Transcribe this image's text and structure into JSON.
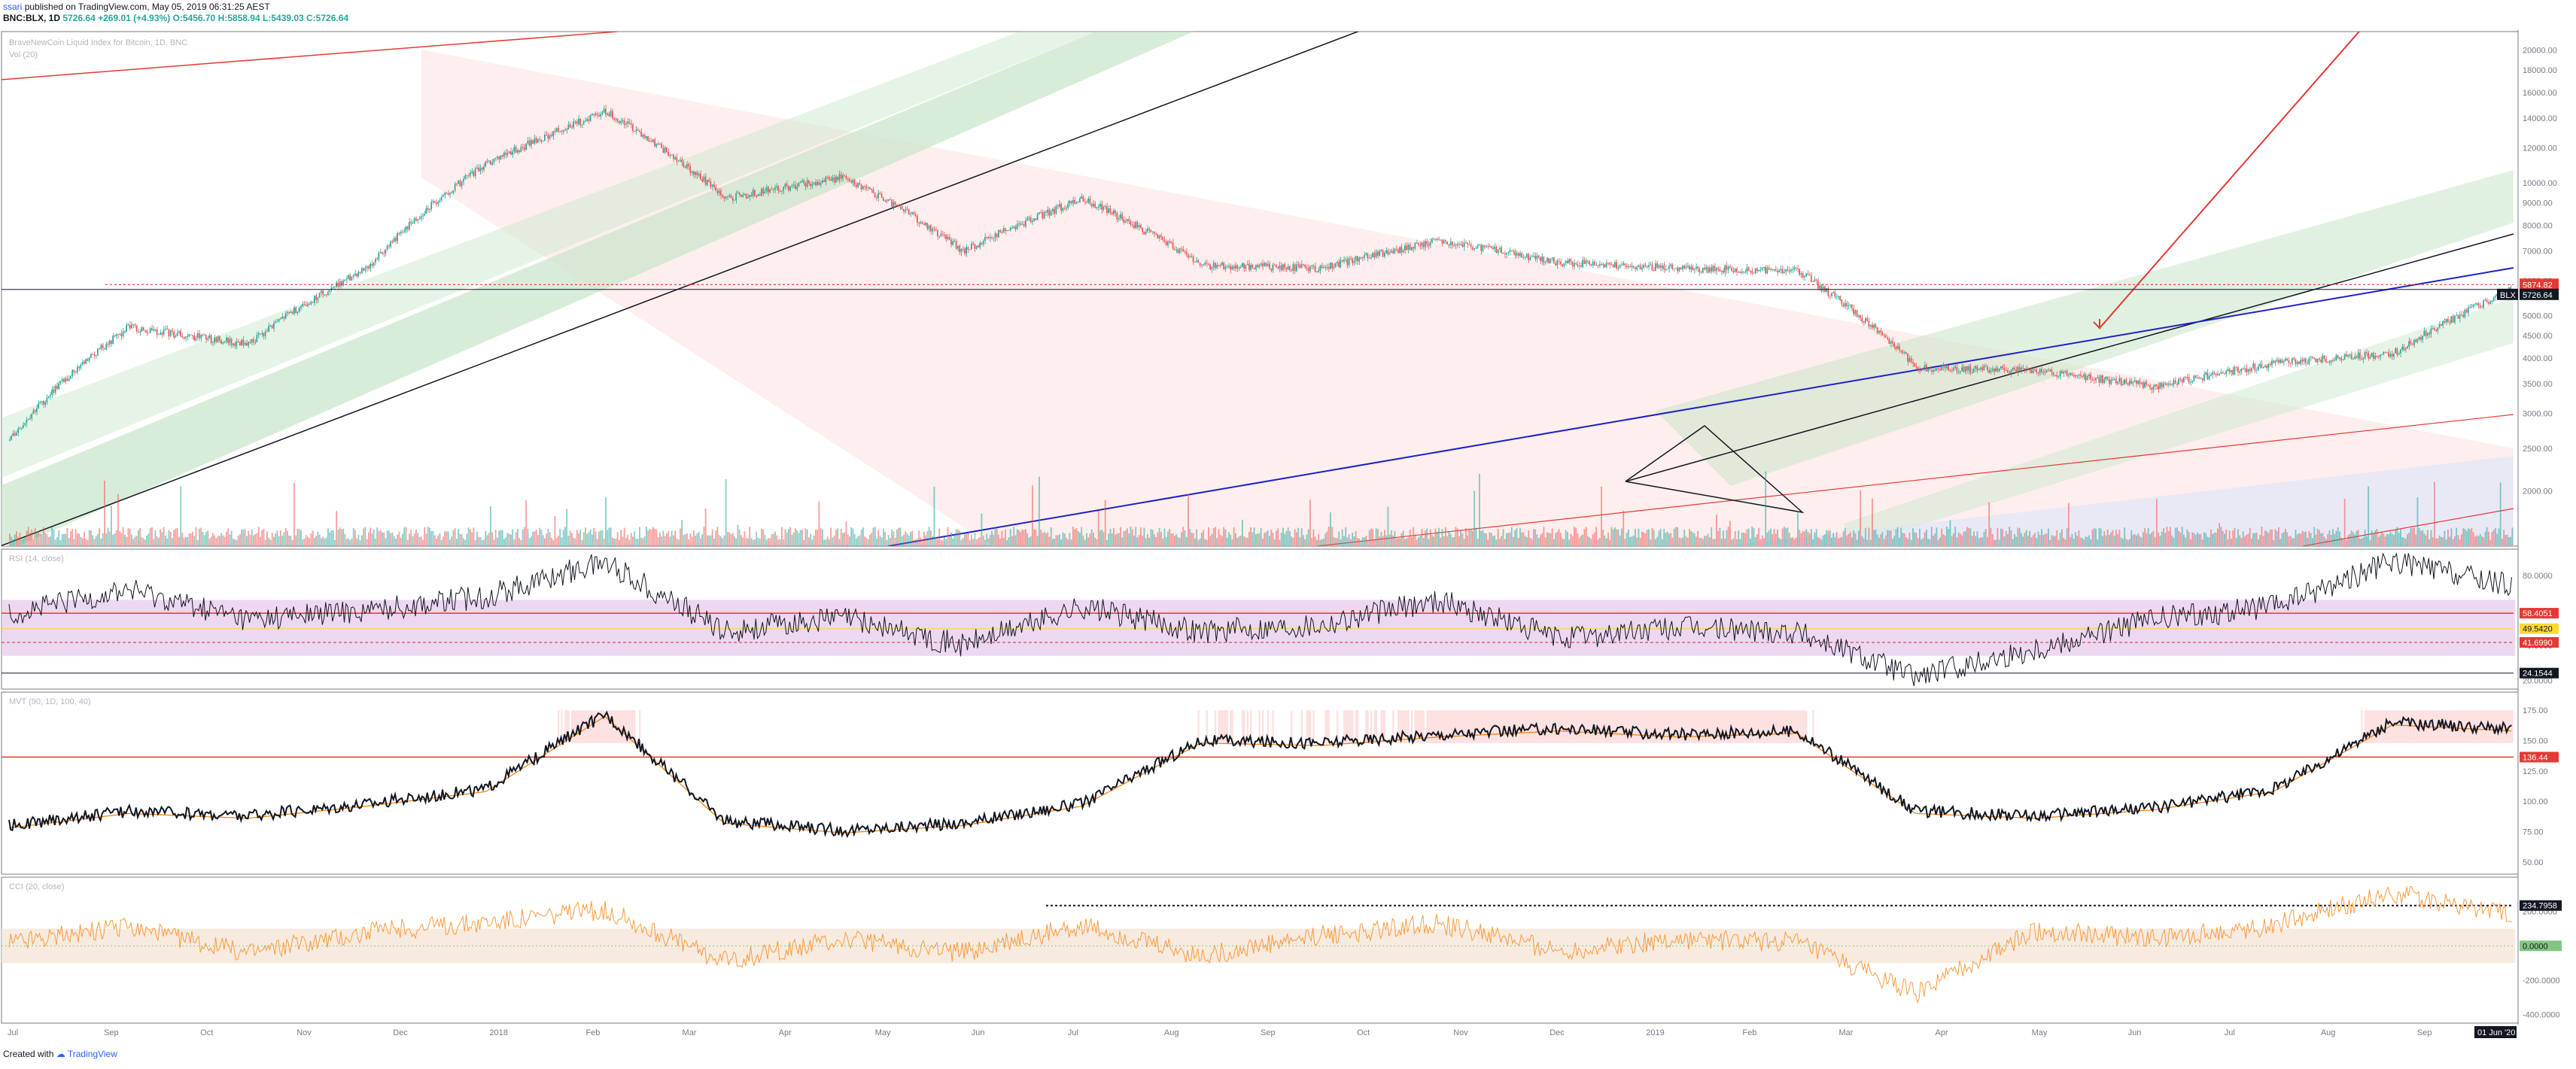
{
  "header": {
    "author": "ssari",
    "published": "published on TradingView.com, May 05, 2019 06:31:25 AEST",
    "symbol": "BNC:BLX, 1D",
    "last": "5726.64",
    "change": "+269.01 (+4.93%)",
    "open": "O:5456.70",
    "high": "H:5858.94",
    "low": "L:5439.03",
    "close": "C:5726.64"
  },
  "footer": {
    "created_with": "Created with",
    "brand": "TradingView"
  },
  "colors": {
    "up": "#26a69a",
    "down": "#ef5350",
    "trend_black": "#131722",
    "trend_blue": "#1c21c9",
    "trend_red": "#e53935",
    "channel_green": "#c8e6c9",
    "channel_red": "#fde0e0",
    "rsi_band": "#e1bee7",
    "cci_band": "#f5e6d8",
    "cci_line": "#ff9a3c",
    "ma_line": "#f57c00"
  },
  "chart_data": [
    {
      "type": "candlestick",
      "title": "BraveNewCoin Liquid Index for Bitcoin, 1D, BNC",
      "legend": [
        "Vol (20)"
      ],
      "x": [
        "Jul 2017",
        "Sep 2017",
        "Oct 2017",
        "Nov 2017",
        "Dec 2017",
        "2018",
        "Feb 2018",
        "Mar 2018",
        "Apr 2018",
        "May 2018",
        "Jun 2018",
        "Jul 2018",
        "Aug 2018",
        "Sep 2018",
        "Oct 2018",
        "Nov 2018",
        "Dec 2018",
        "2019",
        "Feb 2019",
        "Mar 2019",
        "Apr 2019",
        "May 2019"
      ],
      "close_values": [
        2600,
        4700,
        4300,
        6400,
        11000,
        14500,
        9200,
        10300,
        7000,
        9200,
        6500,
        6400,
        7400,
        6600,
        6400,
        6300,
        3800,
        3750,
        3450,
        3900,
        4100,
        5726.64
      ],
      "ylim": [
        1500,
        22000
      ],
      "log_scale": true,
      "y_ticks": [
        20000,
        18000,
        16000,
        14000,
        12000,
        10000,
        9000,
        8000,
        7000,
        6000,
        5000,
        4500,
        4000,
        3500,
        3000,
        2500,
        2000
      ],
      "price_labels": [
        {
          "text": "5874.82",
          "color": "#e53935"
        },
        {
          "text": "BLX",
          "color": "#131722"
        },
        {
          "text": "5726.64",
          "color": "#ffffff"
        }
      ],
      "horizontal_levels": [
        5874.82,
        5726.64
      ]
    },
    {
      "type": "line",
      "title": "RSI (14, close)",
      "values": [
        58,
        72,
        55,
        60,
        68,
        88,
        48,
        56,
        40,
        62,
        48,
        52,
        66,
        44,
        50,
        48,
        22,
        38,
        55,
        62,
        88,
        74
      ],
      "ylim": [
        15,
        95
      ],
      "y_ticks": [
        80,
        60,
        40,
        20
      ],
      "levels": {
        "upper": 58.4051,
        "mid": 49.542,
        "lower": 41.699,
        "low_mark": 24.1544
      },
      "level_labels": [
        "58.4051",
        "49.5420",
        "41.6990",
        "24.1544"
      ]
    },
    {
      "type": "line",
      "title": "MVT (90, 1D, 100, 40)",
      "values": [
        80,
        92,
        88,
        98,
        110,
        172,
        84,
        76,
        82,
        98,
        150,
        148,
        155,
        160,
        155,
        158,
        92,
        88,
        95,
        110,
        165,
        160
      ],
      "ylim": [
        40,
        190
      ],
      "y_ticks": [
        175,
        150,
        125,
        100,
        75,
        50
      ],
      "level": 136.44,
      "level_label": "136.44"
    },
    {
      "type": "line",
      "title": "CCI (20, close)",
      "values": [
        20,
        110,
        -40,
        80,
        140,
        210,
        -90,
        40,
        -40,
        120,
        -60,
        60,
        130,
        -30,
        40,
        20,
        -280,
        90,
        40,
        120,
        310,
        180
      ],
      "ylim": [
        -450,
        400
      ],
      "y_ticks": [
        200,
        0,
        -200,
        -400
      ],
      "levels": {
        "mark": 234.7958,
        "zero": 0
      },
      "level_labels": [
        "234.7958",
        "0.0000"
      ]
    }
  ],
  "time_axis": {
    "labels": [
      "Jul",
      "Sep",
      "Oct",
      "Nov",
      "Dec",
      "2018",
      "Feb",
      "Mar",
      "Apr",
      "May",
      "Jun",
      "Jul",
      "Aug",
      "Sep",
      "Oct",
      "Nov",
      "Dec",
      "2019",
      "Feb",
      "Mar",
      "Apr",
      "May",
      "Jun",
      "Jul",
      "Aug",
      "Sep"
    ],
    "cursor_label": "01 Jun '20"
  }
}
